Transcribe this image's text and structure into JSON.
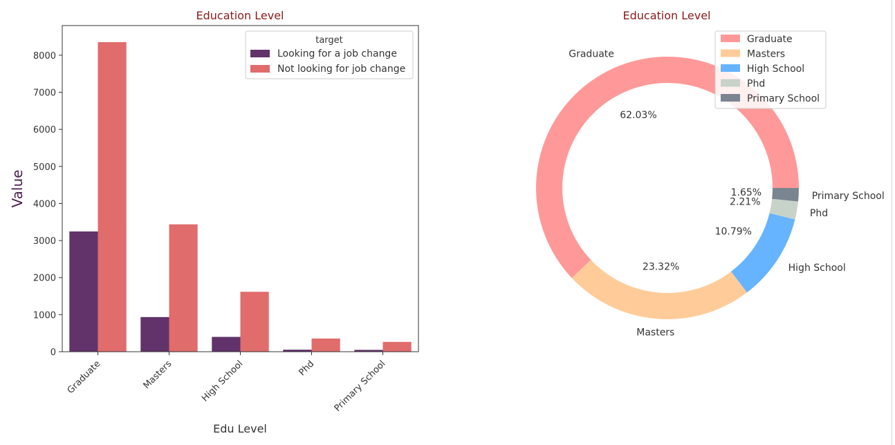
{
  "chart_data": [
    {
      "type": "bar",
      "title": "Education Level",
      "xlabel": "Edu Level",
      "ylabel": "Value",
      "categories": [
        "Graduate",
        "Masters",
        "High School",
        "Phd",
        "Primary School"
      ],
      "series": [
        {
          "name": "Looking for a job change",
          "color": "#61336a",
          "values": [
            3245,
            935,
            400,
            55,
            50
          ]
        },
        {
          "name": "Not looking for job change",
          "color": "#e06c6c",
          "values": [
            8353,
            3437,
            1617,
            356,
            265
          ]
        }
      ],
      "ylim": [
        0,
        8800
      ],
      "yticks": [
        "0",
        "1000",
        "2000",
        "3000",
        "4000",
        "5000",
        "6000",
        "7000",
        "8000"
      ],
      "legend": {
        "title": "target",
        "position": "top-right"
      }
    },
    {
      "type": "pie",
      "title": "Education Level",
      "labels": [
        "Graduate",
        "Masters",
        "High School",
        "Phd",
        "Primary School"
      ],
      "values": [
        62.03,
        23.32,
        10.79,
        2.21,
        1.65
      ],
      "pct_labels": [
        "62.03%",
        "23.32%",
        "10.79%",
        "2.21%",
        "1.65%"
      ],
      "colors": [
        "#ff9999",
        "#ffcc99",
        "#66b3ff",
        "#c7d3c8",
        "#7b8591"
      ],
      "legend": {
        "position": "top-right"
      }
    }
  ]
}
